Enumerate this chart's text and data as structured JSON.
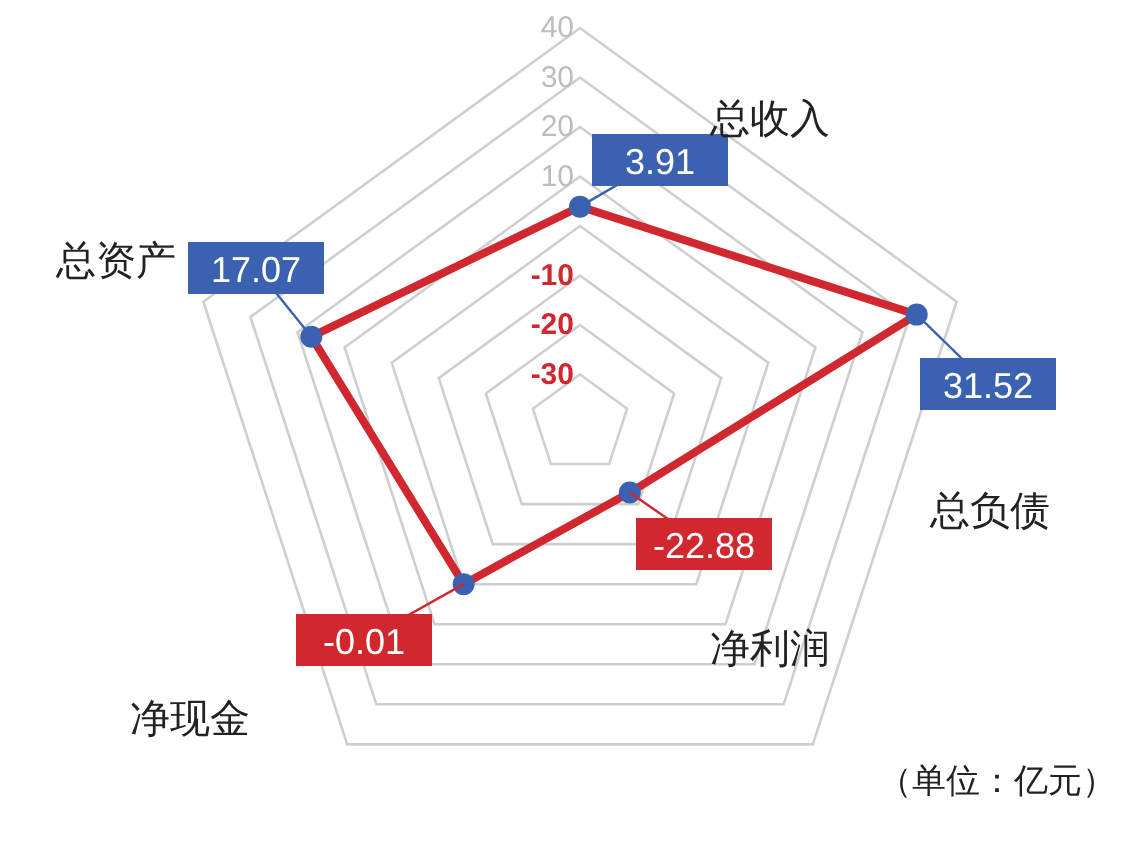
{
  "chart_data": {
    "type": "radar",
    "categories": [
      "总收入",
      "总负债",
      "净利润",
      "净现金",
      "总资产"
    ],
    "series": [
      {
        "color": "#d0282e",
        "colors": [
          "#3a62b0",
          "#3a62b0",
          "#3a62b0",
          "#3a62b0",
          "#3a62b0"
        ],
        "values": [
          3.91,
          31.52,
          -22.88,
          -0.01,
          17.07
        ]
      }
    ],
    "ylim": [
      -40,
      40
    ],
    "yticks": [
      40,
      30,
      20,
      10,
      -10,
      -20,
      -30
    ],
    "grid": true,
    "marker": "circle",
    "data_labels": true,
    "annotations": [
      "（单位：亿元）"
    ]
  }
}
